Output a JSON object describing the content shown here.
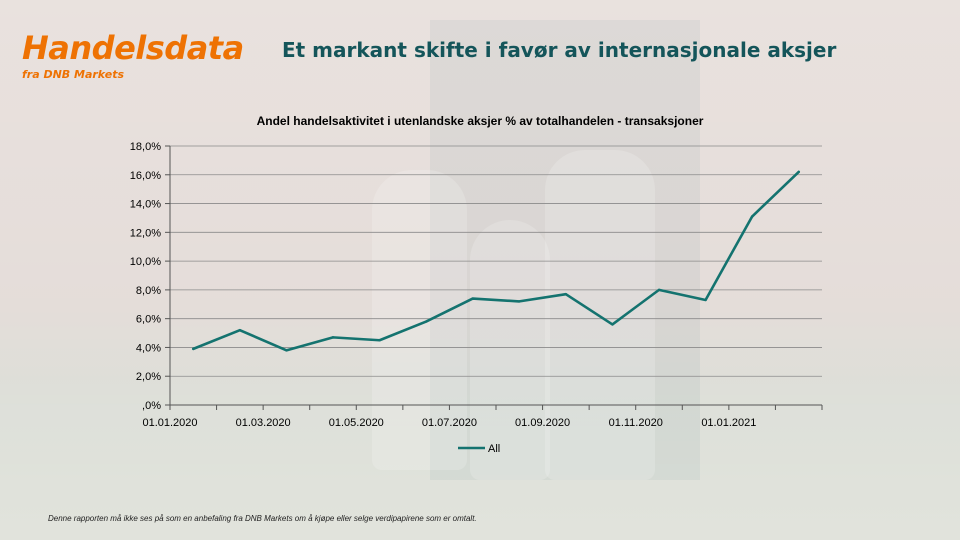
{
  "brand": {
    "title": "Handelsdata",
    "subtitle": "fra DNB Markets"
  },
  "headline": "Et markant skifte i favør av internasjonale aksjer",
  "disclaimer": "Denne rapporten må ikke ses på som en anbefaling fra DNB Markets om å kjøpe eller selge verdipapirene som er omtalt.",
  "colors": {
    "brand": "#ee7203",
    "headline": "#14555a",
    "series": "#14736f"
  },
  "chart_data": {
    "type": "line",
    "title": "Andel handelsaktivitet i utenlandske aksjer %  av totalhandelen - transaksjoner",
    "xlabel": "",
    "ylabel": "",
    "x_tick_labels": [
      "01.01.2020",
      "01.03.2020",
      "01.05.2020",
      "01.07.2020",
      "01.09.2020",
      "01.11.2020",
      "01.01.2021"
    ],
    "y_tick_labels": [
      ",0%",
      "2,0%",
      "4,0%",
      "6,0%",
      "8,0%",
      "10,0%",
      "12,0%",
      "14,0%",
      "16,0%",
      "18,0%"
    ],
    "ylim": [
      0,
      18
    ],
    "grid": true,
    "legend": "bottom",
    "series": [
      {
        "name": "All",
        "x": [
          "2020-01",
          "2020-02",
          "2020-03",
          "2020-04",
          "2020-05",
          "2020-06",
          "2020-07",
          "2020-08",
          "2020-09",
          "2020-10",
          "2020-11",
          "2020-12",
          "2021-01",
          "2021-02"
        ],
        "values": [
          3.9,
          5.2,
          3.8,
          4.7,
          4.5,
          5.8,
          7.4,
          7.2,
          7.7,
          5.6,
          8.0,
          7.3,
          13.1,
          16.2
        ]
      }
    ]
  }
}
